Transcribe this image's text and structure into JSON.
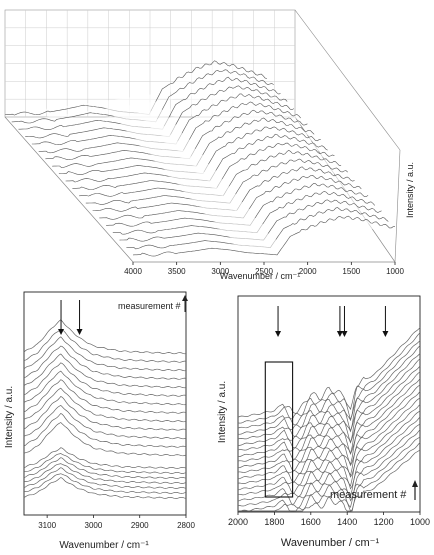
{
  "chart_data": [
    {
      "type": "line",
      "view": "3d-waterfall",
      "xlabel": "Wavenumber / cm⁻¹",
      "ylabel": "Intensity / a.u.",
      "xlim": [
        4000,
        1000
      ],
      "x_reversed": true,
      "ticks": [
        "4000",
        "3500",
        "3000",
        "2500",
        "2000",
        "1500",
        "1000"
      ],
      "tick_values": [
        4000,
        3500,
        3000,
        2500,
        2000,
        1500,
        1000
      ],
      "grid": true,
      "series_count": 20,
      "x": [
        4000,
        3750,
        3500,
        3300,
        3100,
        2900,
        2700,
        2500,
        2350,
        2200,
        2000,
        1800,
        1600,
        1400,
        1200,
        1000
      ],
      "profile": [
        0.02,
        0.03,
        0.05,
        0.09,
        0.14,
        0.11,
        0.06,
        0.04,
        0.02,
        0.35,
        0.5,
        0.62,
        0.7,
        0.66,
        0.58,
        0.5
      ]
    },
    {
      "type": "line",
      "view": "stacked-offset",
      "xlabel": "Wavenumber / cm⁻¹",
      "ylabel": "Intensity / a.u.",
      "xlim": [
        3150,
        2800
      ],
      "x_reversed": true,
      "ticks": [
        "3100",
        "3000",
        "2900",
        "2800"
      ],
      "tick_values": [
        3100,
        3000,
        2900,
        2800
      ],
      "legend_text": "measurement #",
      "arrows_at": [
        3070,
        3030
      ],
      "series_count": 20,
      "x": [
        3150,
        3120,
        3090,
        3070,
        3050,
        3030,
        3000,
        2970,
        2940,
        2900,
        2860,
        2830,
        2800
      ],
      "profile": [
        0.2,
        0.4,
        0.8,
        1.0,
        0.75,
        0.55,
        0.35,
        0.28,
        0.22,
        0.2,
        0.18,
        0.17,
        0.17
      ]
    },
    {
      "type": "line",
      "view": "stacked-offset",
      "xlabel": "Wavenumber / cm⁻¹",
      "ylabel": "Intensity / a.u.",
      "xlim": [
        2000,
        1000
      ],
      "x_reversed": true,
      "ticks": [
        "2000",
        "1800",
        "1600",
        "1400",
        "1200",
        "1000"
      ],
      "tick_values": [
        2000,
        1800,
        1600,
        1400,
        1200,
        1000
      ],
      "legend_text": "measurement #",
      "arrows_at": [
        1780,
        1440,
        1415,
        1190
      ],
      "highlight_range": [
        1850,
        1700
      ],
      "series_count": 20,
      "x": [
        2000,
        1900,
        1800,
        1750,
        1700,
        1650,
        1600,
        1550,
        1500,
        1440,
        1415,
        1380,
        1350,
        1300,
        1250,
        1190,
        1150,
        1100,
        1050,
        1000
      ],
      "profile": [
        0.05,
        0.08,
        0.12,
        0.2,
        0.1,
        0.15,
        0.3,
        0.25,
        0.35,
        0.3,
        0.28,
        0.1,
        0.4,
        0.45,
        0.5,
        0.62,
        0.7,
        0.8,
        0.9,
        1.0
      ]
    }
  ]
}
